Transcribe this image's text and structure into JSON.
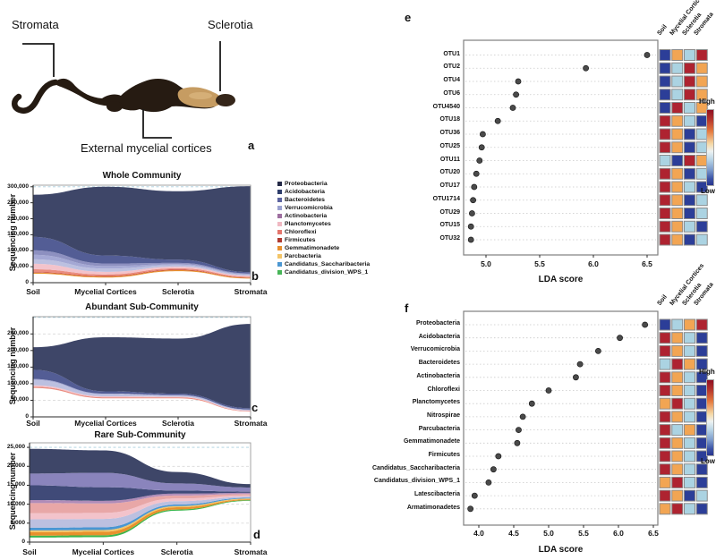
{
  "panel_a": {
    "letter": "a",
    "stromata": "Stromata",
    "sclerotia": "Sclerotia",
    "cortices": "External mycelial cortices"
  },
  "legend": {
    "items": [
      {
        "label": "Proteobacteria",
        "color": "#232946"
      },
      {
        "label": "Acidobacteria",
        "color": "#2e3d6b"
      },
      {
        "label": "Bacteroidetes",
        "color": "#5c64a0"
      },
      {
        "label": "Verrucomicrobia",
        "color": "#9ba2d0"
      },
      {
        "label": "Actinobacteria",
        "color": "#9e6fa0"
      },
      {
        "label": "Planctomycetes",
        "color": "#f0b9c2"
      },
      {
        "label": "Chloroflexi",
        "color": "#e4766d"
      },
      {
        "label": "Firmicutes",
        "color": "#b03a30"
      },
      {
        "label": "Gemmatimonadete",
        "color": "#e8902f"
      },
      {
        "label": "Parcbacteria",
        "color": "#f3c568"
      },
      {
        "label": "Candidatus_Saccharibacteria",
        "color": "#4b97d2"
      },
      {
        "label": "Candidatus_division_WPS_1",
        "color": "#47b558"
      }
    ]
  },
  "heat": {
    "palette": {
      "R": "#ae2330",
      "O": "#f2a553",
      "L": "#abd3e2",
      "B": "#2c3e98"
    },
    "columns": [
      "Soil",
      "Mycelial Cortices",
      "Sclerotia",
      "Stromata"
    ],
    "high_label": "High",
    "low_label": "Low"
  },
  "chart_data": [
    {
      "panel": "b",
      "type": "area",
      "title": "Whole Community",
      "ylabel": "Sequencing number",
      "categories": [
        "Soil",
        "Mycelial Cortices",
        "Sclerotia",
        "Stromata"
      ],
      "yticks": [
        0,
        50000,
        100000,
        150000,
        200000,
        250000,
        300000
      ],
      "gridlines": [
        50000,
        100000,
        150000,
        200000,
        250000,
        300000
      ],
      "special_grid": 300000,
      "ylim": [
        0,
        305000
      ],
      "base": [
        28000,
        16000,
        36000,
        13000
      ],
      "layers": [
        {
          "name": "Gemmatimonadete",
          "color": "#e8912c",
          "upper": [
            31000,
            19000,
            39000,
            15000
          ]
        },
        {
          "name": "Firmicutes",
          "color": "#bf3a2b",
          "upper": [
            33000,
            21000,
            41000,
            16000
          ]
        },
        {
          "name": "Chloroflexi",
          "color": "#ea8d80",
          "upper": [
            42000,
            26000,
            45000,
            19000
          ]
        },
        {
          "name": "Planctomycetes",
          "color": "#f3c3cb",
          "upper": [
            59000,
            34000,
            50000,
            22000
          ]
        },
        {
          "name": "Actinobacteria",
          "color": "#bcc0e0",
          "upper": [
            73000,
            44000,
            55000,
            25000
          ]
        },
        {
          "name": "Verrucomicrobia",
          "color": "#a4a8d4",
          "upper": [
            87000,
            52000,
            58000,
            27000
          ]
        },
        {
          "name": "Bacteroidetes",
          "color": "#8d90c0",
          "upper": [
            101000,
            60000,
            62000,
            29000
          ]
        },
        {
          "name": "Acidobacteria",
          "color": "#535d95",
          "upper": [
            143000,
            85000,
            72000,
            33000
          ]
        },
        {
          "name": "Proteobacteria",
          "color": "#3e4668",
          "upper": [
            275000,
            300000,
            286000,
            302000
          ]
        }
      ]
    },
    {
      "panel": "c",
      "type": "area",
      "title": "Abundant Sub-Community",
      "ylabel": "Sequencing number",
      "categories": [
        "Soil",
        "Mycelial Cortices",
        "Sclerotia",
        "Stromata"
      ],
      "yticks": [
        0,
        50000,
        100000,
        150000,
        200000,
        250000
      ],
      "gridlines": [
        50000,
        100000,
        150000,
        200000,
        250000,
        300000
      ],
      "special_grid": 300000,
      "ylim": [
        0,
        302000
      ],
      "base": [
        87000,
        56000,
        56000,
        16000
      ],
      "layers": [
        {
          "name": "Chloroflexi",
          "color": "#ea8d80",
          "upper": [
            91000,
            59000,
            59000,
            17500
          ]
        },
        {
          "name": "Planctomycetes",
          "color": "#f3c3cb",
          "upper": [
            95000,
            62000,
            61000,
            19000
          ]
        },
        {
          "name": "Actinobacteria",
          "color": "#bcc0e0",
          "upper": [
            111000,
            68000,
            64000,
            21000
          ]
        },
        {
          "name": "Verrucomicrobia",
          "color": "#a4a8d4",
          "upper": [
            114000,
            70000,
            66000,
            22000
          ]
        },
        {
          "name": "Acidobacteria",
          "color": "#535d95",
          "upper": [
            142000,
            77000,
            70000,
            26000
          ]
        },
        {
          "name": "Proteobacteria",
          "color": "#3e4668",
          "upper": [
            210000,
            240000,
            236000,
            280000
          ]
        }
      ]
    },
    {
      "panel": "d",
      "type": "area",
      "title": "Rare Sub-Community",
      "ylabel": "Sequencing number",
      "categories": [
        "Soil",
        "Mycelial Cortices",
        "Sclerotia",
        "Stromata"
      ],
      "yticks": [
        0,
        5000,
        10000,
        15000,
        20000,
        25000
      ],
      "gridlines": [
        5000,
        10000,
        15000,
        20000,
        25000
      ],
      "special_grid": 25000,
      "ylim": [
        0,
        26200
      ],
      "base": [
        1200,
        1300,
        8300,
        10900
      ],
      "layers": [
        {
          "name": "Candidatus_division_WPS_1",
          "color": "#3cb54a",
          "upper": [
            1700,
            1800,
            8600,
            11050
          ]
        },
        {
          "name": "Gemmatimonadete",
          "color": "#e8912c",
          "upper": [
            2600,
            2700,
            9200,
            11300
          ]
        },
        {
          "name": "Parcbacteria",
          "color": "#f2c566",
          "upper": [
            3100,
            3200,
            9500,
            11500
          ]
        },
        {
          "name": "Candidatus_Saccharibacteria",
          "color": "#4a96d2",
          "upper": [
            3800,
            3900,
            9900,
            11700
          ]
        },
        {
          "name": "Verrucomicrobia",
          "color": "#bcc0e0",
          "upper": [
            6000,
            6100,
            10800,
            12000
          ]
        },
        {
          "name": "Planctomycetes",
          "color": "#f3c3cb",
          "upper": [
            7600,
            7700,
            11500,
            12300
          ]
        },
        {
          "name": "Chloroflexi",
          "color": "#e8a7a7",
          "upper": [
            10300,
            10200,
            12300,
            12700
          ]
        },
        {
          "name": "Actinobacteria",
          "color": "#b08cb8",
          "upper": [
            11100,
            10900,
            12800,
            13000
          ]
        },
        {
          "name": "Acidobacteria",
          "color": "#404a78",
          "upper": [
            15000,
            14500,
            13600,
            13300
          ]
        },
        {
          "name": "Bacteroidetes",
          "color": "#8a84bc",
          "upper": [
            18100,
            18300,
            15500,
            14400
          ]
        },
        {
          "name": "Proteobacteria",
          "color": "#3e4668",
          "upper": [
            24600,
            24200,
            18500,
            15300
          ]
        }
      ]
    },
    {
      "panel": "e",
      "type": "scatter",
      "xlabel": "LDA score",
      "xticks": [
        5.0,
        5.5,
        6.0,
        6.5
      ],
      "xlim": [
        4.79,
        6.6
      ],
      "items": [
        {
          "label": "OTU1",
          "lda": 6.5,
          "heat": [
            "B",
            "O",
            "L",
            "R"
          ]
        },
        {
          "label": "OTU2",
          "lda": 5.93,
          "heat": [
            "B",
            "L",
            "R",
            "O"
          ]
        },
        {
          "label": "OTU4",
          "lda": 5.3,
          "heat": [
            "B",
            "L",
            "R",
            "O"
          ]
        },
        {
          "label": "OTU6",
          "lda": 5.28,
          "heat": [
            "B",
            "L",
            "R",
            "O"
          ]
        },
        {
          "label": "OTU4540",
          "lda": 5.25,
          "heat": [
            "B",
            "R",
            "L",
            "O"
          ]
        },
        {
          "label": "OTU18",
          "lda": 5.11,
          "heat": [
            "R",
            "O",
            "L",
            "B"
          ]
        },
        {
          "label": "OTU36",
          "lda": 4.97,
          "heat": [
            "R",
            "O",
            "B",
            "L"
          ]
        },
        {
          "label": "OTU25",
          "lda": 4.96,
          "heat": [
            "R",
            "O",
            "B",
            "L"
          ]
        },
        {
          "label": "OTU11",
          "lda": 4.94,
          "heat": [
            "L",
            "B",
            "R",
            "O"
          ]
        },
        {
          "label": "OTU20",
          "lda": 4.91,
          "heat": [
            "R",
            "O",
            "B",
            "L"
          ]
        },
        {
          "label": "OTU17",
          "lda": 4.89,
          "heat": [
            "R",
            "O",
            "L",
            "B"
          ]
        },
        {
          "label": "OTU1714",
          "lda": 4.88,
          "heat": [
            "R",
            "O",
            "B",
            "L"
          ]
        },
        {
          "label": "OTU29",
          "lda": 4.87,
          "heat": [
            "R",
            "O",
            "B",
            "L"
          ]
        },
        {
          "label": "OTU15",
          "lda": 4.86,
          "heat": [
            "R",
            "O",
            "L",
            "B"
          ]
        },
        {
          "label": "OTU32",
          "lda": 4.86,
          "heat": [
            "R",
            "O",
            "B",
            "L"
          ]
        }
      ]
    },
    {
      "panel": "f",
      "type": "scatter",
      "xlabel": "LDA score",
      "xticks": [
        4.0,
        4.5,
        5.0,
        5.5,
        6.0,
        6.5
      ],
      "xlim": [
        3.78,
        6.56
      ],
      "items": [
        {
          "label": "Proteobacteria",
          "lda": 6.38,
          "heat": [
            "B",
            "L",
            "O",
            "R"
          ]
        },
        {
          "label": "Acidobacteria",
          "lda": 6.02,
          "heat": [
            "R",
            "O",
            "L",
            "B"
          ]
        },
        {
          "label": "Verrucomicrobia",
          "lda": 5.71,
          "heat": [
            "R",
            "O",
            "L",
            "B"
          ]
        },
        {
          "label": "Bacteroidetes",
          "lda": 5.45,
          "heat": [
            "L",
            "R",
            "O",
            "B"
          ]
        },
        {
          "label": "Actinobacteria",
          "lda": 5.39,
          "heat": [
            "R",
            "O",
            "L",
            "B"
          ]
        },
        {
          "label": "Chloroflexi",
          "lda": 5.0,
          "heat": [
            "R",
            "O",
            "L",
            "B"
          ]
        },
        {
          "label": "Planctomycetes",
          "lda": 4.76,
          "heat": [
            "O",
            "R",
            "L",
            "B"
          ]
        },
        {
          "label": "Nitrospirae",
          "lda": 4.63,
          "heat": [
            "R",
            "O",
            "L",
            "B"
          ]
        },
        {
          "label": "Parcubacteria",
          "lda": 4.57,
          "heat": [
            "R",
            "L",
            "O",
            "B"
          ]
        },
        {
          "label": "Gemmatimonadete",
          "lda": 4.55,
          "heat": [
            "R",
            "O",
            "L",
            "B"
          ]
        },
        {
          "label": "Firmicutes",
          "lda": 4.28,
          "heat": [
            "R",
            "O",
            "L",
            "B"
          ]
        },
        {
          "label": "Candidatus_Saccharibacteria",
          "lda": 4.21,
          "heat": [
            "R",
            "O",
            "L",
            "B"
          ]
        },
        {
          "label": "Candidatus_division_WPS_1",
          "lda": 4.14,
          "heat": [
            "O",
            "R",
            "L",
            "B"
          ]
        },
        {
          "label": "Latescibacteria",
          "lda": 3.94,
          "heat": [
            "R",
            "O",
            "B",
            "L"
          ]
        },
        {
          "label": "Armatimonadetes",
          "lda": 3.88,
          "heat": [
            "O",
            "R",
            "L",
            "B"
          ]
        }
      ]
    }
  ]
}
